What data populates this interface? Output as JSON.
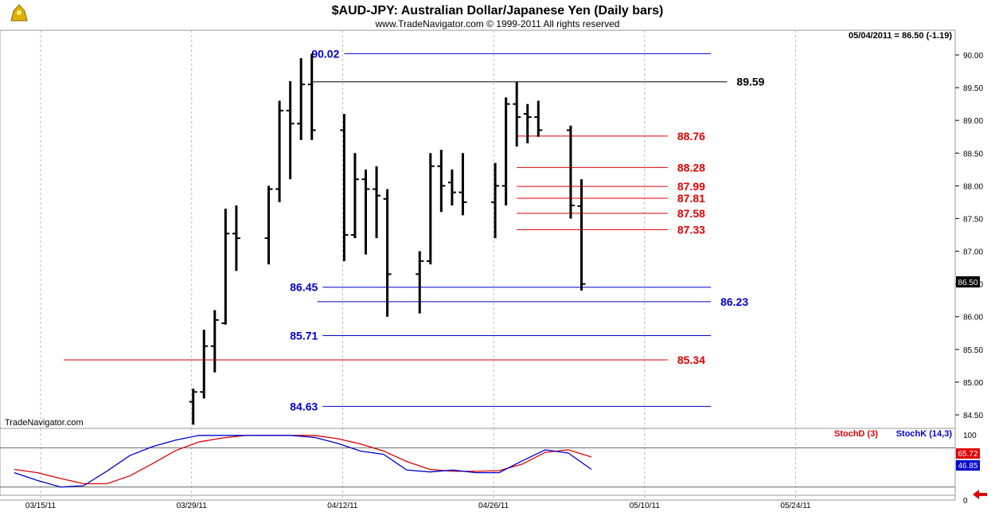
{
  "header": {
    "title": "$AUD-JPY:  Australian Dollar/Japanese Yen  (Daily bars)",
    "copyright": "www.TradeNavigator.com © 1999-2011 All rights reserved",
    "last_quote": "05/04/2011 = 86.50 (-1.19)",
    "watermark": "TradeNavigator.com"
  },
  "colors": {
    "blue": "#0000cc",
    "red": "#dd0000",
    "black": "#000000",
    "grid": "#bbbbbb"
  },
  "chart_data": [
    {
      "type": "ohlc",
      "title": "$AUD-JPY:  Australian Dollar/Japanese Yen  (Daily bars)",
      "ylim": [
        84.35,
        90.3
      ],
      "y_ticks": [
        "90.00",
        "89.50",
        "89.00",
        "88.50",
        "88.00",
        "87.50",
        "87.00",
        "86.50",
        "86.00",
        "85.50",
        "85.00",
        "84.50"
      ],
      "x_ticks": [
        "03/15/11",
        "03/29/11",
        "04/12/11",
        "04/26/11",
        "05/10/11",
        "05/24/11"
      ],
      "x_tick_days": [
        0,
        14,
        28,
        42,
        56,
        70
      ],
      "last_price_label": "86.50",
      "bars": [
        {
          "day": 14,
          "o": 84.7,
          "h": 84.9,
          "l": 84.35,
          "c": 84.85
        },
        {
          "day": 15,
          "o": 84.85,
          "h": 85.8,
          "l": 84.75,
          "c": 85.55
        },
        {
          "day": 16,
          "o": 85.55,
          "h": 86.1,
          "l": 85.15,
          "c": 85.95
        },
        {
          "day": 17,
          "o": 85.9,
          "h": 87.65,
          "l": 85.88,
          "c": 87.27
        },
        {
          "day": 18,
          "o": 87.27,
          "h": 87.7,
          "l": 86.7,
          "c": 87.2
        },
        {
          "day": 21,
          "o": 87.2,
          "h": 88.0,
          "l": 86.8,
          "c": 87.95
        },
        {
          "day": 22,
          "o": 87.95,
          "h": 89.3,
          "l": 87.75,
          "c": 89.15
        },
        {
          "day": 23,
          "o": 89.15,
          "h": 89.6,
          "l": 88.1,
          "c": 88.95
        },
        {
          "day": 24,
          "o": 88.95,
          "h": 89.95,
          "l": 88.7,
          "c": 89.55
        },
        {
          "day": 25,
          "o": 89.55,
          "h": 90.02,
          "l": 88.7,
          "c": 88.85
        },
        {
          "day": 28,
          "o": 88.85,
          "h": 89.1,
          "l": 86.85,
          "c": 87.25
        },
        {
          "day": 29,
          "o": 87.25,
          "h": 88.5,
          "l": 87.2,
          "c": 88.1
        },
        {
          "day": 30,
          "o": 88.1,
          "h": 88.25,
          "l": 86.95,
          "c": 87.95
        },
        {
          "day": 31,
          "o": 87.95,
          "h": 88.3,
          "l": 87.2,
          "c": 87.85
        },
        {
          "day": 32,
          "o": 87.8,
          "h": 87.95,
          "l": 86.0,
          "c": 86.65
        },
        {
          "day": 35,
          "o": 86.65,
          "h": 87.0,
          "l": 86.05,
          "c": 86.85
        },
        {
          "day": 36,
          "o": 86.85,
          "h": 88.5,
          "l": 86.8,
          "c": 88.3
        },
        {
          "day": 37,
          "o": 88.3,
          "h": 88.55,
          "l": 87.6,
          "c": 88.0
        },
        {
          "day": 38,
          "o": 88.05,
          "h": 88.25,
          "l": 87.7,
          "c": 87.9
        },
        {
          "day": 39,
          "o": 87.9,
          "h": 88.5,
          "l": 87.55,
          "c": 87.75
        },
        {
          "day": 42,
          "o": 87.75,
          "h": 88.35,
          "l": 87.2,
          "c": 88.0
        },
        {
          "day": 43,
          "o": 88.0,
          "h": 89.35,
          "l": 87.7,
          "c": 89.25
        },
        {
          "day": 44,
          "o": 89.25,
          "h": 89.59,
          "l": 88.6,
          "c": 89.05
        },
        {
          "day": 45,
          "o": 89.1,
          "h": 89.25,
          "l": 88.65,
          "c": 89.05
        },
        {
          "day": 46,
          "o": 89.05,
          "h": 89.3,
          "l": 88.75,
          "c": 88.85
        },
        {
          "day": 49,
          "o": 88.85,
          "h": 88.92,
          "l": 87.5,
          "c": 87.7
        },
        {
          "day": 50,
          "o": 87.69,
          "h": 88.1,
          "l": 86.4,
          "c": 86.5
        }
      ],
      "levels": [
        {
          "label": "90.02",
          "value": 90.02,
          "color": "blue",
          "side": "left",
          "x0": 28,
          "x1": 62
        },
        {
          "label": "89.59",
          "value": 89.59,
          "color": "black",
          "side": "right",
          "x0": 25,
          "x1": 63.5
        },
        {
          "label": "88.76",
          "value": 88.76,
          "color": "red",
          "side": "right",
          "x0": 44,
          "x1": 58
        },
        {
          "label": "88.28",
          "value": 88.28,
          "color": "red",
          "side": "right",
          "x0": 44,
          "x1": 58
        },
        {
          "label": "87.99",
          "value": 87.99,
          "color": "red",
          "side": "right",
          "x0": 44,
          "x1": 58
        },
        {
          "label": "87.81",
          "value": 87.81,
          "color": "red",
          "side": "right",
          "x0": 44,
          "x1": 58
        },
        {
          "label": "87.58",
          "value": 87.58,
          "color": "red",
          "side": "right",
          "x0": 44,
          "x1": 58
        },
        {
          "label": "87.33",
          "value": 87.33,
          "color": "red",
          "side": "right",
          "x0": 44,
          "x1": 58
        },
        {
          "label": "86.45",
          "value": 86.45,
          "color": "blue",
          "side": "left",
          "x0": 26,
          "x1": 62
        },
        {
          "label": "86.23",
          "value": 86.23,
          "color": "blue",
          "side": "right",
          "x0": 25.5,
          "x1": 62
        },
        {
          "label": "85.71",
          "value": 85.71,
          "color": "blue",
          "side": "left",
          "x0": 26,
          "x1": 62
        },
        {
          "label": "85.34",
          "value": 85.34,
          "color": "red",
          "side": "right",
          "x0": 2,
          "x1": 58
        },
        {
          "label": "84.63",
          "value": 84.63,
          "color": "blue",
          "side": "left",
          "x0": 26,
          "x1": 62
        }
      ]
    },
    {
      "type": "line",
      "ylim": [
        0,
        100
      ],
      "y_ticks": [
        "100",
        "0"
      ],
      "ref_lines": [
        80,
        20
      ],
      "legend": [
        "StochD (3)",
        "StochK (14,3)"
      ],
      "last_values": [
        "65.72",
        "46.85"
      ],
      "series": [
        {
          "name": "StochD (3)",
          "color": "red",
          "x": [
            0,
            2,
            4,
            6,
            8,
            10,
            12,
            14,
            16,
            18,
            20,
            22,
            24,
            26,
            28,
            30,
            32,
            34,
            36,
            38,
            40,
            42,
            44,
            46,
            48,
            50
          ],
          "values": [
            47,
            42,
            33,
            25,
            25,
            37,
            56,
            76,
            89,
            95,
            99,
            99,
            99,
            99,
            94,
            86,
            75,
            59,
            47,
            44,
            44,
            45,
            55,
            73,
            77,
            66
          ]
        },
        {
          "name": "StochK (14,3)",
          "color": "blue",
          "x": [
            0,
            2,
            4,
            6,
            8,
            10,
            12,
            14,
            16,
            18,
            20,
            22,
            24,
            26,
            28,
            30,
            32,
            34,
            36,
            38,
            40,
            42,
            44,
            46,
            48,
            50
          ],
          "values": [
            42,
            30,
            20,
            22,
            44,
            68,
            82,
            92,
            99,
            99,
            99,
            99,
            99,
            96,
            87,
            75,
            70,
            46,
            43,
            46,
            42,
            42,
            60,
            77,
            72,
            47
          ]
        }
      ]
    }
  ]
}
